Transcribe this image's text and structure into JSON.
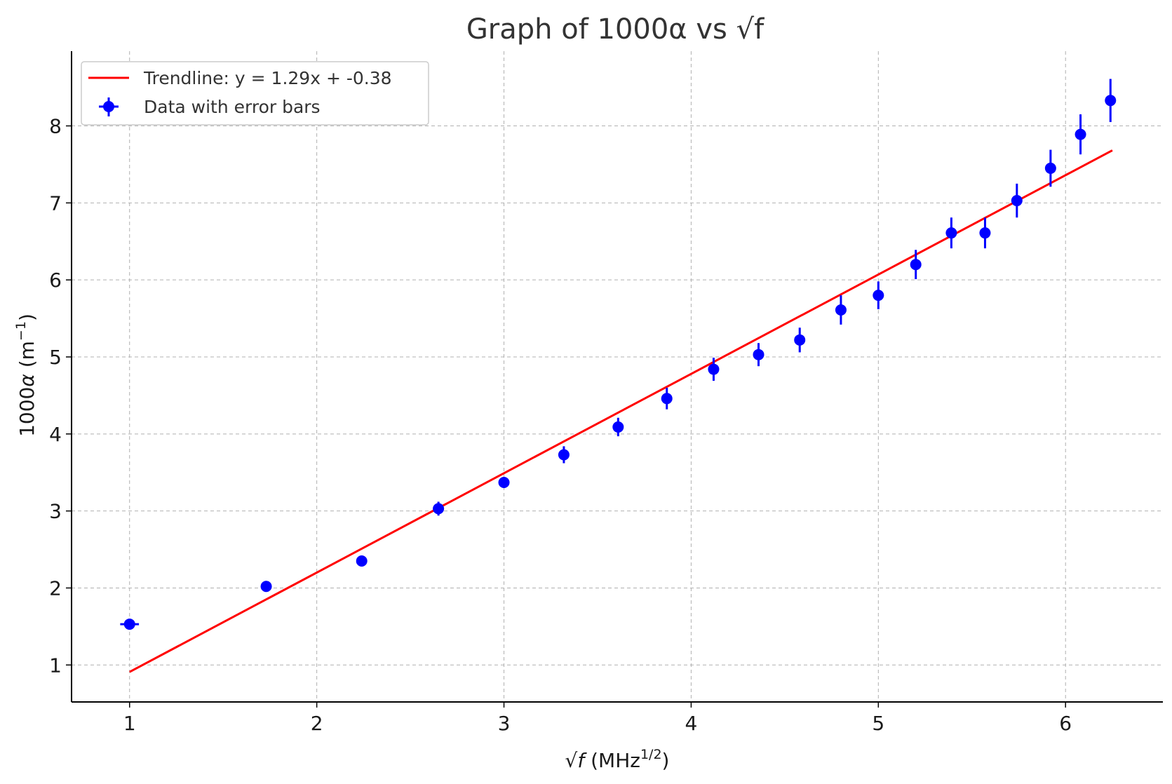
{
  "chart_data": {
    "type": "scatter",
    "title": "Graph of 1000α vs √f",
    "xlabel": {
      "sqrt": "√",
      "var": "f",
      "unit": " (MHz",
      "sup": "1/2",
      "close": ")"
    },
    "ylabel": {
      "prefix": "1000",
      "var": "α",
      "unit": " (m",
      "sup": "−1",
      "close": ")"
    },
    "xlim": [
      0.69,
      6.52
    ],
    "ylim": [
      0.52,
      8.97
    ],
    "xticks": [
      1,
      2,
      3,
      4,
      5,
      6
    ],
    "yticks": [
      1,
      2,
      3,
      4,
      5,
      6,
      7,
      8
    ],
    "grid": true,
    "legend_position": "top-left",
    "series": [
      {
        "name": "Data with error bars",
        "color": "#0000ff",
        "x": [
          1.0,
          1.73,
          2.24,
          2.65,
          3.0,
          3.32,
          3.61,
          3.87,
          4.12,
          4.36,
          4.58,
          4.8,
          5.0,
          5.2,
          5.39,
          5.57,
          5.74,
          5.92,
          6.08,
          6.24
        ],
        "y": [
          1.53,
          2.02,
          2.35,
          3.03,
          3.37,
          3.73,
          4.09,
          4.46,
          4.84,
          5.03,
          5.22,
          5.61,
          5.8,
          6.2,
          6.61,
          6.61,
          7.03,
          7.45,
          7.89,
          8.33
        ],
        "yerr": [
          0.03,
          0.04,
          0.05,
          0.09,
          0.07,
          0.11,
          0.12,
          0.14,
          0.15,
          0.15,
          0.16,
          0.19,
          0.18,
          0.19,
          0.2,
          0.2,
          0.22,
          0.24,
          0.26,
          0.28
        ],
        "xerr": [
          0.05,
          0,
          0,
          0,
          0,
          0,
          0,
          0,
          0,
          0,
          0,
          0,
          0,
          0,
          0,
          0,
          0,
          0,
          0,
          0
        ]
      }
    ],
    "trendline": {
      "name": "Trendline: y = 1.29x + -0.38",
      "color": "#ff0000",
      "slope": 1.29,
      "intercept": -0.38,
      "x_range": [
        1.0,
        6.25
      ]
    }
  }
}
